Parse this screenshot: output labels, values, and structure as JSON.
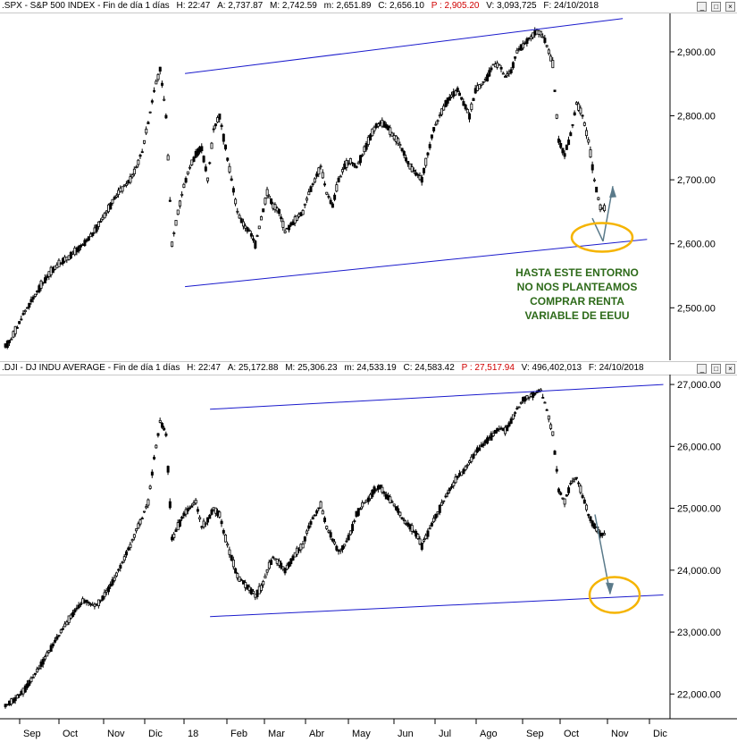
{
  "pane_top": {
    "header": {
      "title": ".SPX - S&P 500 INDEX - Fin de día 1 días",
      "h": "H: 22:47",
      "a": "A: 2,737.87",
      "m": "M: 2,742.59",
      "min": "m: 2,651.89",
      "c": "C: 2,656.10",
      "p": "P : 2,905.20",
      "v": "V: 3,093,725",
      "f": "F: 24/10/2018"
    },
    "buttons": [
      "_",
      "□",
      "×"
    ]
  },
  "pane_bottom": {
    "header": {
      "title": ".DJI - DJ INDU AVERAGE - Fin de día 1 días",
      "h": "H: 22:47",
      "a": "A: 25,172.88",
      "m": "M: 25,306.23",
      "min": "m: 24,533.19",
      "c": "C: 24,583.42",
      "p": "P : 27,517.94",
      "v": "V: 496,402,013",
      "f": "F: 24/10/2018"
    },
    "buttons": [
      "_",
      "□",
      "×"
    ]
  },
  "annotation": {
    "lines": [
      "HASTA ESTE ENTORNO",
      "NO NOS PLANTEAMOS",
      "COMPRAR RENTA",
      "VARIABLE DE EEUU"
    ]
  },
  "x_axis": {
    "labels": [
      "Sep",
      "Oct",
      "Nov",
      "Dic",
      "18",
      "Feb",
      "Mar",
      "Abr",
      "May",
      "Jun",
      "Jul",
      "Ago",
      "Sep",
      "Oct",
      "Nov",
      "Dic"
    ]
  },
  "colors": {
    "trendline": "#1a1acc",
    "candle": "#000000",
    "circle": "#f5b400",
    "arrow": "#5a7a8a",
    "annotation": "#2e6b1a"
  },
  "chart_data": [
    {
      "type": "line",
      "series": [
        {
          "name": ".SPX",
          "values": [
            2440,
            2452,
            2470,
            2490,
            2505,
            2520,
            2535,
            2548,
            2560,
            2568,
            2575,
            2582,
            2590,
            2598,
            2608,
            2620,
            2635,
            2650,
            2665,
            2680,
            2690,
            2700,
            2720,
            2745,
            2790,
            2840,
            2872,
            2800,
            2600,
            2650,
            2690,
            2720,
            2740,
            2750,
            2700,
            2780,
            2800,
            2750,
            2700,
            2650,
            2630,
            2620,
            2600,
            2640,
            2680,
            2660,
            2650,
            2620,
            2630,
            2640,
            2650,
            2680,
            2700,
            2720,
            2680,
            2660,
            2700,
            2720,
            2730,
            2720,
            2740,
            2760,
            2780,
            2790,
            2785,
            2770,
            2760,
            2740,
            2720,
            2710,
            2700,
            2740,
            2780,
            2800,
            2820,
            2830,
            2840,
            2820,
            2800,
            2840,
            2850,
            2860,
            2880,
            2880,
            2860,
            2870,
            2900,
            2910,
            2920,
            2930,
            2930,
            2910,
            2880,
            2760,
            2740,
            2770,
            2820,
            2800,
            2760,
            2700,
            2656
          ]
        }
      ],
      "y_ticks": [
        2500,
        2600,
        2700,
        2800,
        2900
      ],
      "y_tick_labels": [
        "2,500.00",
        "2,600.00",
        "2,700.00",
        "2,800.00",
        "2,900.00"
      ],
      "ylim": [
        2418,
        2960
      ],
      "trendlines": [
        {
          "x": [
            0.251,
            0.845
          ],
          "y": [
            2866,
            2952
          ]
        },
        {
          "x": [
            0.251,
            0.878
          ],
          "y": [
            2533,
            2607
          ]
        }
      ],
      "grid": false
    },
    {
      "type": "line",
      "series": [
        {
          "name": ".DJI",
          "values": [
            21800,
            21870,
            21950,
            22050,
            22180,
            22320,
            22480,
            22630,
            22800,
            22950,
            23100,
            23250,
            23380,
            23500,
            23480,
            23420,
            23500,
            23650,
            23800,
            24000,
            24200,
            24400,
            24650,
            24850,
            25100,
            25800,
            26400,
            26200,
            24500,
            24700,
            24900,
            25000,
            25100,
            24700,
            24800,
            25000,
            24900,
            24500,
            24200,
            23900,
            23800,
            23700,
            23600,
            23700,
            24000,
            24200,
            24100,
            24000,
            24150,
            24300,
            24400,
            24700,
            24900,
            25050,
            24700,
            24500,
            24300,
            24400,
            24600,
            24900,
            25050,
            25150,
            25300,
            25350,
            25200,
            25100,
            24950,
            24800,
            24700,
            24600,
            24400,
            24600,
            24800,
            25000,
            25200,
            25350,
            25500,
            25600,
            25750,
            25900,
            26000,
            26100,
            26200,
            26300,
            26250,
            26400,
            26600,
            26750,
            26800,
            26850,
            26900,
            26600,
            26200,
            25300,
            25100,
            25400,
            25500,
            25200,
            24900,
            24700,
            24583
          ]
        }
      ],
      "y_ticks": [
        22000,
        23000,
        24000,
        25000,
        26000,
        27000
      ],
      "y_tick_labels": [
        "22,000.00",
        "23,000.00",
        "24,000.00",
        "25,000.00",
        "26,000.00",
        "27,000.00"
      ],
      "ylim": [
        21600,
        27160
      ],
      "trendlines": [
        {
          "x": [
            0.285,
            0.9
          ],
          "y": [
            26600,
            27000
          ]
        },
        {
          "x": [
            0.285,
            0.9
          ],
          "y": [
            23250,
            23600
          ]
        }
      ],
      "grid": false
    }
  ]
}
